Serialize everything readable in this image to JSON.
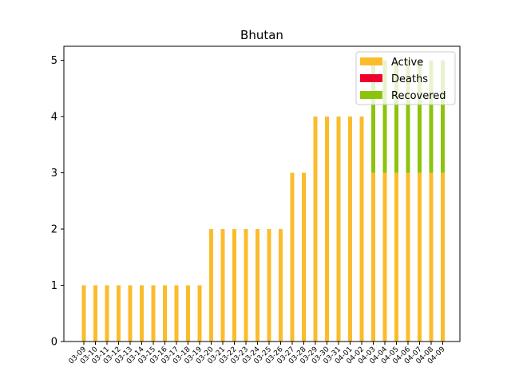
{
  "chart_data": {
    "type": "bar",
    "stacked": true,
    "title": "Bhutan",
    "xlabel": "",
    "ylabel": "",
    "ylim": [
      0,
      5.25
    ],
    "yticks": [
      0,
      1,
      2,
      3,
      4,
      5
    ],
    "grid": false,
    "legend_position": "top-right",
    "categories": [
      "03-09",
      "03-10",
      "03-11",
      "03-12",
      "03-13",
      "03-14",
      "03-15",
      "03-16",
      "03-17",
      "03-18",
      "03-19",
      "03-20",
      "03-21",
      "03-22",
      "03-23",
      "03-24",
      "03-25",
      "03-26",
      "03-27",
      "03-28",
      "03-29",
      "03-30",
      "03-31",
      "04-01",
      "04-02",
      "04-03",
      "04-04",
      "04-05",
      "04-06",
      "04-07",
      "04-08",
      "04-09"
    ],
    "series": [
      {
        "name": "Active",
        "color": "#fbbc2c",
        "values": [
          1,
          1,
          1,
          1,
          1,
          1,
          1,
          1,
          1,
          1,
          1,
          2,
          2,
          2,
          2,
          2,
          2,
          2,
          3,
          3,
          4,
          4,
          4,
          4,
          4,
          3,
          3,
          3,
          3,
          3,
          3,
          3
        ]
      },
      {
        "name": "Deaths",
        "color": "#f0002c",
        "values": [
          0,
          0,
          0,
          0,
          0,
          0,
          0,
          0,
          0,
          0,
          0,
          0,
          0,
          0,
          0,
          0,
          0,
          0,
          0,
          0,
          0,
          0,
          0,
          0,
          0,
          0,
          0,
          0,
          0,
          0,
          0,
          0
        ]
      },
      {
        "name": "Recovered",
        "color": "#8cc40c",
        "values": [
          0,
          0,
          0,
          0,
          0,
          0,
          0,
          0,
          0,
          0,
          0,
          0,
          0,
          0,
          0,
          0,
          0,
          0,
          0,
          0,
          0,
          0,
          0,
          0,
          0,
          2,
          2,
          2,
          2,
          2,
          2,
          2
        ]
      }
    ]
  }
}
